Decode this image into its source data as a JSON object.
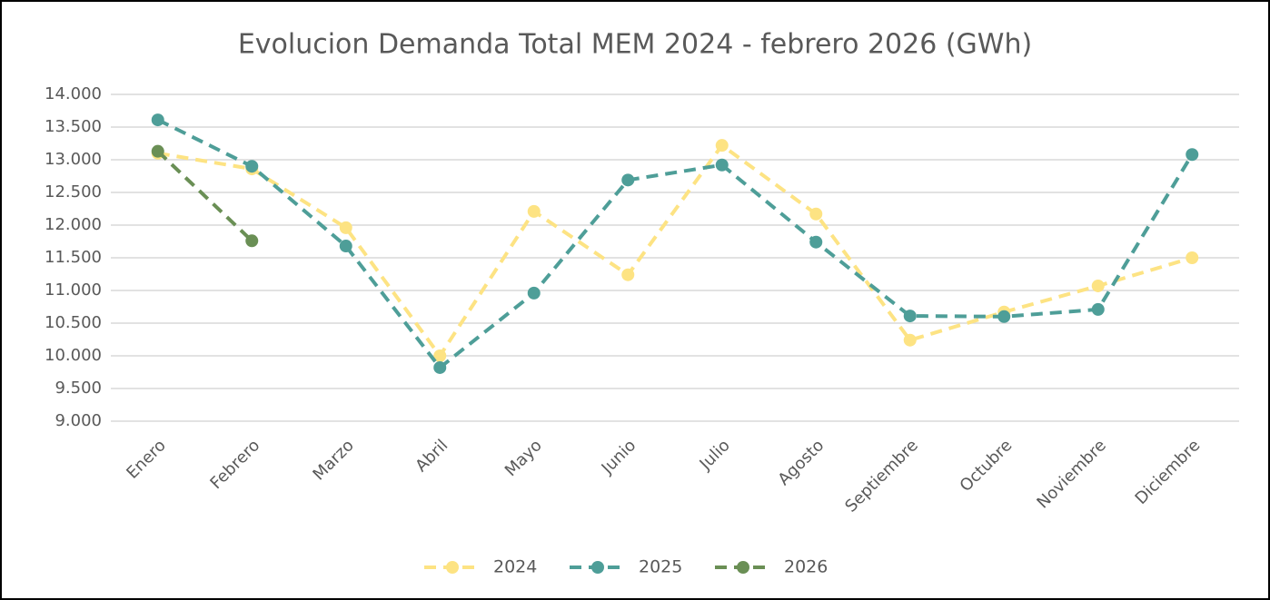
{
  "chart_data": {
    "type": "line",
    "title": "Evolucion Demanda Total MEM 2024 - febrero 2026 (GWh)",
    "categories": [
      "Enero",
      "Febrero",
      "Marzo",
      "Abril",
      "Mayo",
      "Junio",
      "Julio",
      "Agosto",
      "Septiembre",
      "Octubre",
      "Noviembre",
      "Diciembre"
    ],
    "series": [
      {
        "name": "2024",
        "color": "#fde383",
        "values": [
          13100,
          12860,
          11960,
          10000,
          12210,
          11240,
          13220,
          12170,
          10240,
          10670,
          11070,
          11500
        ]
      },
      {
        "name": "2025",
        "color": "#4e9e98",
        "values": [
          13610,
          12900,
          11680,
          9820,
          10960,
          12690,
          12920,
          11740,
          10610,
          10600,
          10710,
          13080
        ]
      },
      {
        "name": "2026",
        "color": "#6a8f55",
        "values": [
          13130,
          11760,
          null,
          null,
          null,
          null,
          null,
          null,
          null,
          null,
          null,
          null
        ]
      }
    ],
    "ylim": [
      9000,
      14000
    ],
    "yticks": [
      {
        "value": 9000,
        "label": "9.000"
      },
      {
        "value": 9500,
        "label": "9.500"
      },
      {
        "value": 10000,
        "label": "10.000"
      },
      {
        "value": 10500,
        "label": "10.500"
      },
      {
        "value": 11000,
        "label": "11.000"
      },
      {
        "value": 11500,
        "label": "11.500"
      },
      {
        "value": 12000,
        "label": "12.000"
      },
      {
        "value": 12500,
        "label": "12.500"
      },
      {
        "value": 13000,
        "label": "13.000"
      },
      {
        "value": 13500,
        "label": "13.500"
      },
      {
        "value": 14000,
        "label": "14.000"
      }
    ],
    "grid": true,
    "legend": "bottom"
  }
}
